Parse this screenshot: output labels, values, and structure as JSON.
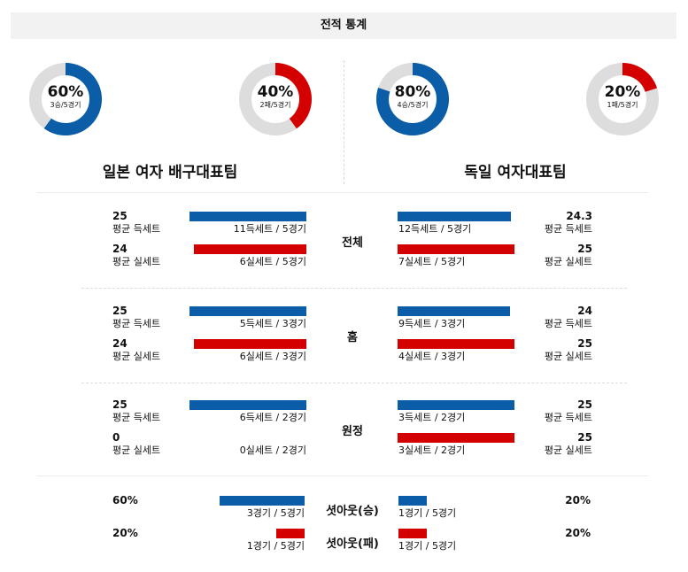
{
  "header": {
    "title": "전적 통계"
  },
  "colors": {
    "win": "#0b5da7",
    "loss": "#d40000",
    "track": "#dddddd"
  },
  "donuts": {
    "left_win": {
      "pct": "60%",
      "sub": "3승/5경기",
      "value": 0.6
    },
    "left_loss": {
      "pct": "40%",
      "sub": "2패/5경기",
      "value": 0.4
    },
    "right_win": {
      "pct": "80%",
      "sub": "4승/5경기",
      "value": 0.8
    },
    "right_loss": {
      "pct": "20%",
      "sub": "1패/5경기",
      "value": 0.2
    }
  },
  "teams": {
    "left": "일본 여자 배구대표팀",
    "right": "독일 여자대표팀"
  },
  "labels": {
    "avg_win": "평균 득세트",
    "avg_loss": "평균 실세트"
  },
  "sections": [
    {
      "name": "전체",
      "left": {
        "win_avg": "25",
        "win_text": "11득세트 / 5경기",
        "win_ratio": 1.0,
        "loss_avg": "24",
        "loss_text": "6실세트 / 5경기",
        "loss_ratio": 0.96
      },
      "right": {
        "win_avg": "24.3",
        "win_text": "12득세트 / 5경기",
        "win_ratio": 0.97,
        "loss_avg": "25",
        "loss_text": "7실세트 / 5경기",
        "loss_ratio": 1.0
      }
    },
    {
      "name": "홈",
      "left": {
        "win_avg": "25",
        "win_text": "5득세트 / 3경기",
        "win_ratio": 1.0,
        "loss_avg": "24",
        "loss_text": "6실세트 / 3경기",
        "loss_ratio": 0.96
      },
      "right": {
        "win_avg": "24",
        "win_text": "9득세트 / 3경기",
        "win_ratio": 0.96,
        "loss_avg": "25",
        "loss_text": "4실세트 / 3경기",
        "loss_ratio": 1.0
      }
    },
    {
      "name": "원정",
      "left": {
        "win_avg": "25",
        "win_text": "6득세트 / 2경기",
        "win_ratio": 1.0,
        "loss_avg": "0",
        "loss_text": "0실세트 / 2경기",
        "loss_ratio": 0
      },
      "right": {
        "win_avg": "25",
        "win_text": "3득세트 / 2경기",
        "win_ratio": 1.0,
        "loss_avg": "25",
        "loss_text": "3실세트 / 2경기",
        "loss_ratio": 1.0
      }
    }
  ],
  "shutouts": [
    {
      "name": "셧아웃(승)",
      "left_pct": "60%",
      "left_text": "3경기 / 5경기",
      "left_ratio": 0.6,
      "right_pct": "20%",
      "right_text": "1경기 / 5경기",
      "right_ratio": 0.2
    },
    {
      "name": "셧아웃(패)",
      "left_pct": "20%",
      "left_text": "1경기 / 5경기",
      "left_ratio": 0.2,
      "right_pct": "20%",
      "right_text": "1경기 / 5경기",
      "right_ratio": 0.2
    }
  ]
}
